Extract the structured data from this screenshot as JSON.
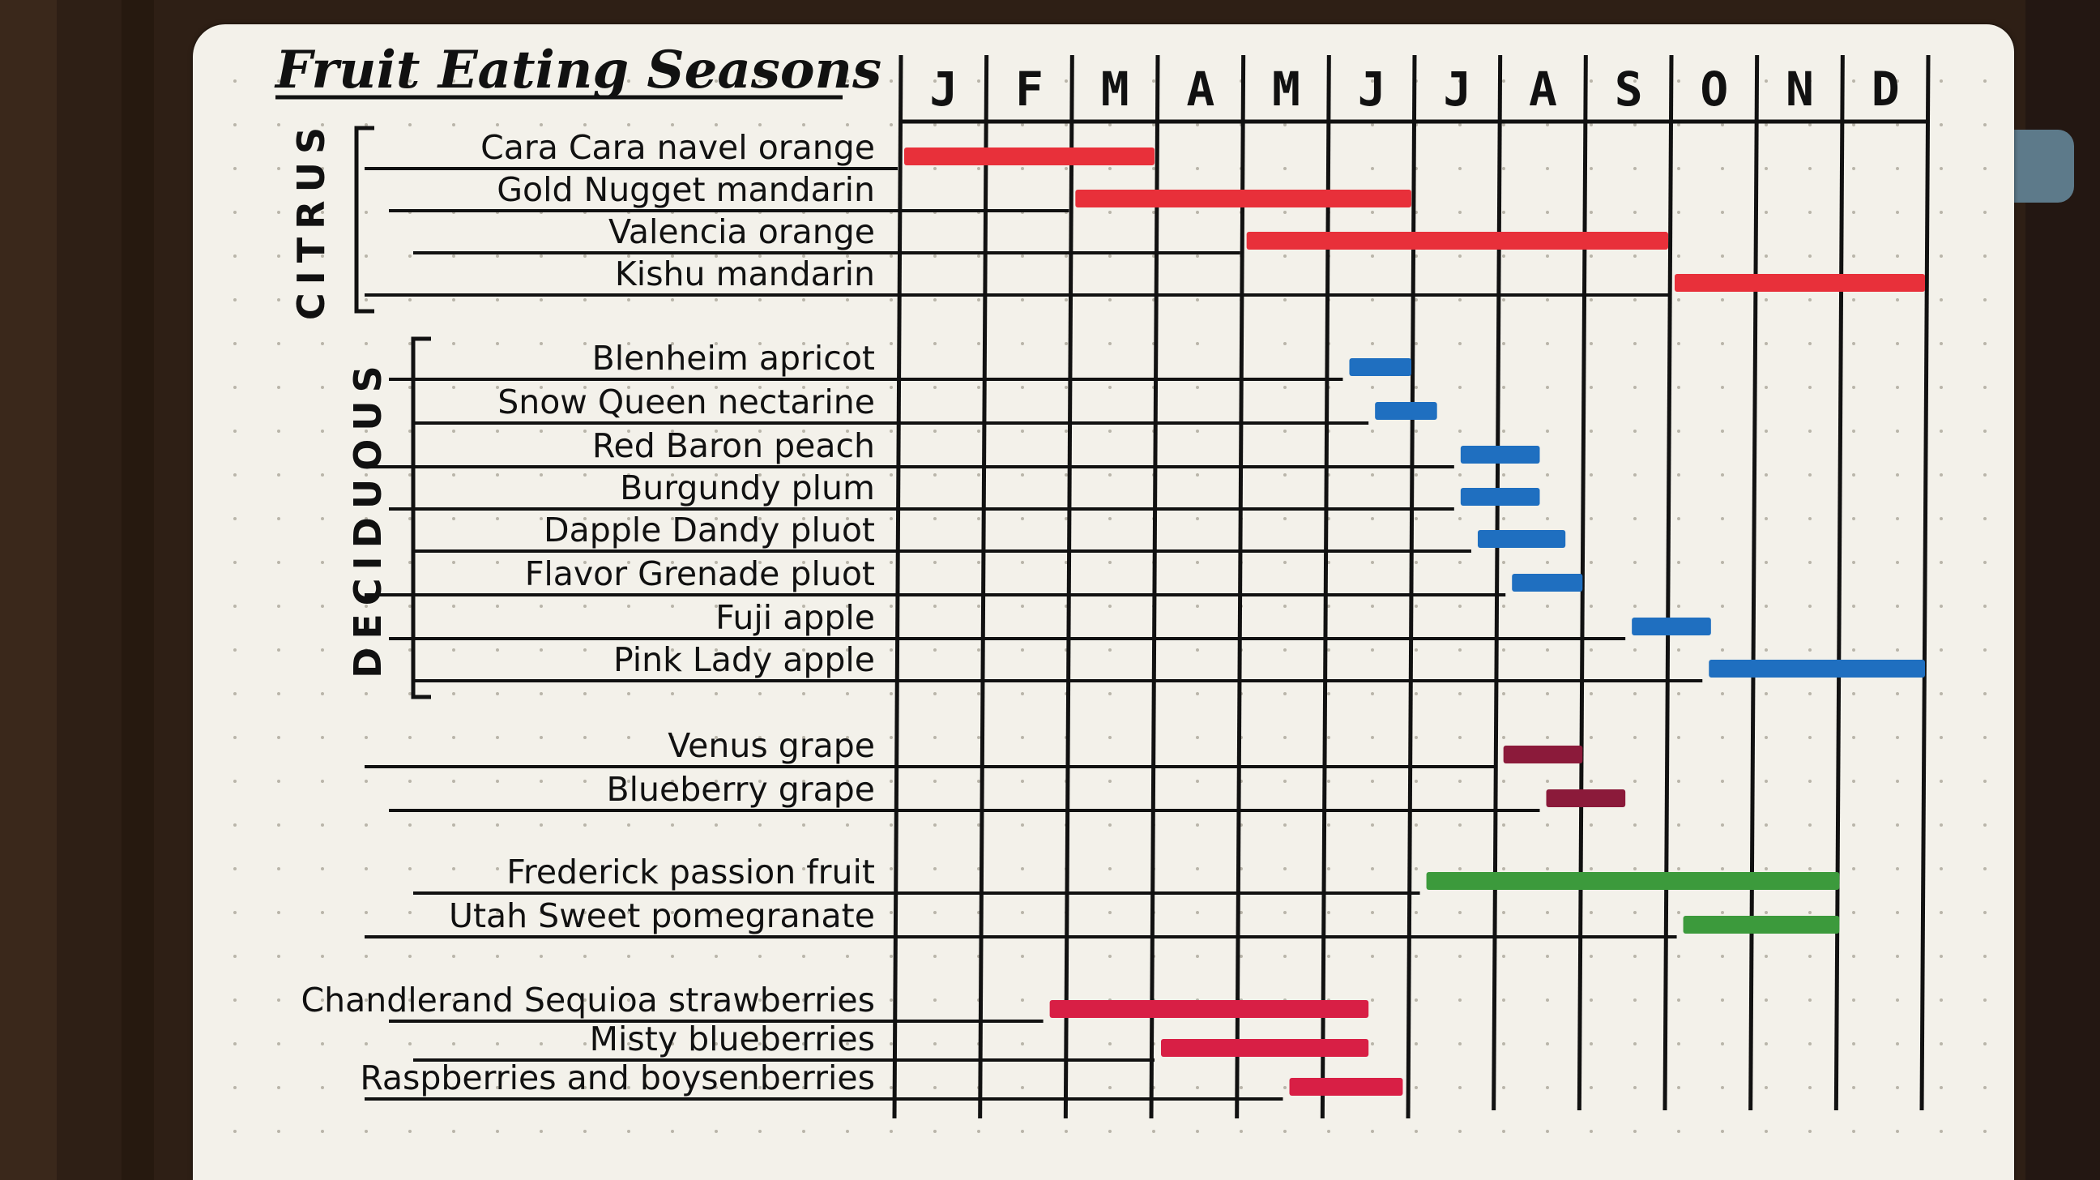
{
  "chart_data": {
    "type": "gantt",
    "title": "Fruit Eating Seasons",
    "months": [
      "J",
      "F",
      "M",
      "A",
      "M",
      "J",
      "J",
      "A",
      "S",
      "O",
      "N",
      "D"
    ],
    "groups": [
      {
        "label": "CITRUS",
        "rows": [
          0,
          3
        ]
      },
      {
        "label": "DECIDUOUS",
        "rows": [
          4,
          11
        ]
      }
    ],
    "colors": {
      "citrus": "#e8303a",
      "deciduous": "#1f6fc0",
      "grape": "#8b1a3a",
      "tropical": "#3c9a3c",
      "berry": "#d81f45"
    },
    "rows": [
      {
        "label": "Cara Cara navel orange",
        "start": 0.0,
        "end": 3.0,
        "color": "citrus"
      },
      {
        "label": "Gold Nugget mandarin",
        "start": 2.0,
        "end": 6.0,
        "color": "citrus"
      },
      {
        "label": "Valencia orange",
        "start": 4.0,
        "end": 9.0,
        "color": "citrus"
      },
      {
        "label": "Kishu mandarin",
        "start": 9.0,
        "end": 12.0,
        "color": "citrus"
      },
      {
        "label": "Blenheim apricot",
        "start": 5.2,
        "end": 6.0,
        "color": "deciduous"
      },
      {
        "label": "Snow Queen nectarine",
        "start": 5.5,
        "end": 6.3,
        "color": "deciduous"
      },
      {
        "label": "Red Baron peach",
        "start": 6.5,
        "end": 7.5,
        "color": "deciduous"
      },
      {
        "label": "Burgundy plum",
        "start": 6.5,
        "end": 7.5,
        "color": "deciduous"
      },
      {
        "label": "Dapple Dandy pluot",
        "start": 6.7,
        "end": 7.8,
        "color": "deciduous"
      },
      {
        "label": "Flavor Grenade pluot",
        "start": 7.1,
        "end": 8.0,
        "color": "deciduous"
      },
      {
        "label": "Fuji apple",
        "start": 8.5,
        "end": 9.5,
        "color": "deciduous"
      },
      {
        "label": "Pink Lady apple",
        "start": 9.4,
        "end": 12.0,
        "color": "deciduous"
      },
      {
        "label": "Venus grape",
        "start": 7.0,
        "end": 8.0,
        "color": "grape"
      },
      {
        "label": "Blueberry grape",
        "start": 7.5,
        "end": 8.5,
        "color": "grape"
      },
      {
        "label": "Frederick passion fruit",
        "start": 6.1,
        "end": 11.0,
        "color": "tropical"
      },
      {
        "label": "Utah Sweet pomegranate",
        "start": 9.1,
        "end": 11.0,
        "color": "tropical"
      },
      {
        "label": "Chandlerand Sequioa strawberries",
        "start": 1.7,
        "end": 5.5,
        "color": "berry"
      },
      {
        "label": "Misty blueberries",
        "start": 3.0,
        "end": 5.5,
        "color": "berry"
      },
      {
        "label": "Raspberries and boysenberries",
        "start": 4.5,
        "end": 5.9,
        "color": "berry"
      }
    ]
  }
}
